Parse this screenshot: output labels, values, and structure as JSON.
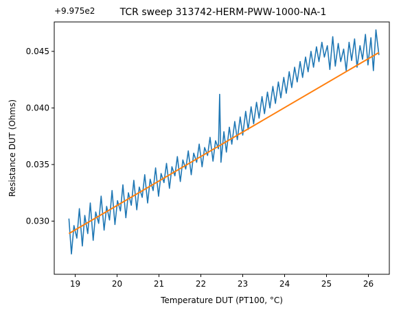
{
  "chart_data": {
    "type": "line",
    "title": "TCR sweep 313742-HERM-PWW-1000-NA-1",
    "xlabel": "Temperature DUT (PT100, °C)",
    "ylabel": "Resistance DUT (Ohms)",
    "y_offset_label": "+9.975e2",
    "xlim": [
      18.5,
      26.5
    ],
    "ylim": [
      0.0253,
      0.0476
    ],
    "x_ticks": [
      19,
      20,
      21,
      22,
      23,
      24,
      25,
      26
    ],
    "x_tick_labels": [
      "19",
      "20",
      "21",
      "22",
      "23",
      "24",
      "25",
      "26"
    ],
    "y_ticks": [
      0.03,
      0.035,
      0.04,
      0.045
    ],
    "y_tick_labels": [
      "0.030",
      "0.035",
      "0.040",
      "0.045"
    ],
    "grid": false,
    "colors": {
      "measured": "#1f77b4",
      "fit": "#ff7f0e"
    },
    "series": [
      {
        "role": "measured",
        "x": [
          18.85,
          18.91,
          18.97,
          19.04,
          19.1,
          19.17,
          19.23,
          19.3,
          19.36,
          19.43,
          19.49,
          19.56,
          19.62,
          19.69,
          19.75,
          19.82,
          19.88,
          19.95,
          20.01,
          20.08,
          20.14,
          20.21,
          20.27,
          20.34,
          20.4,
          20.47,
          20.53,
          20.6,
          20.66,
          20.73,
          20.79,
          20.86,
          20.92,
          20.99,
          21.05,
          21.12,
          21.18,
          21.25,
          21.31,
          21.38,
          21.44,
          21.51,
          21.57,
          21.64,
          21.7,
          21.77,
          21.83,
          21.9,
          21.96,
          22.03,
          22.09,
          22.16,
          22.22,
          22.29,
          22.35,
          22.42,
          22.45,
          22.48,
          22.55,
          22.61,
          22.68,
          22.74,
          22.81,
          22.87,
          22.94,
          23.0,
          23.07,
          23.13,
          23.2,
          23.26,
          23.33,
          23.39,
          23.46,
          23.52,
          23.59,
          23.65,
          23.72,
          23.78,
          23.85,
          23.91,
          23.98,
          24.04,
          24.11,
          24.17,
          24.24,
          24.3,
          24.37,
          24.43,
          24.5,
          24.56,
          24.63,
          24.69,
          24.76,
          24.82,
          24.89,
          24.95,
          25.02,
          25.08,
          25.15,
          25.21,
          25.28,
          25.34,
          25.41,
          25.47,
          25.54,
          25.6,
          25.67,
          25.73,
          25.8,
          25.86,
          25.93,
          25.99,
          26.06,
          26.12,
          26.18,
          26.25
        ],
        "y": [
          0.0302,
          0.0271,
          0.0296,
          0.0285,
          0.0311,
          0.0278,
          0.0305,
          0.0289,
          0.0316,
          0.0283,
          0.0308,
          0.0298,
          0.0322,
          0.0292,
          0.0313,
          0.0301,
          0.0327,
          0.0297,
          0.0318,
          0.0309,
          0.0332,
          0.0303,
          0.0325,
          0.0314,
          0.0336,
          0.031,
          0.033,
          0.0321,
          0.0341,
          0.0316,
          0.0337,
          0.0327,
          0.0347,
          0.0322,
          0.0342,
          0.0334,
          0.0351,
          0.0329,
          0.0348,
          0.034,
          0.0357,
          0.0335,
          0.0354,
          0.0346,
          0.0362,
          0.0341,
          0.036,
          0.0352,
          0.0368,
          0.0348,
          0.0365,
          0.0358,
          0.0374,
          0.0353,
          0.0371,
          0.0364,
          0.0412,
          0.0352,
          0.0379,
          0.0361,
          0.0383,
          0.0368,
          0.0388,
          0.0372,
          0.0392,
          0.0376,
          0.0397,
          0.0381,
          0.0401,
          0.0386,
          0.0405,
          0.0391,
          0.041,
          0.0395,
          0.0414,
          0.04,
          0.0419,
          0.0404,
          0.0423,
          0.0409,
          0.0427,
          0.0413,
          0.0432,
          0.0418,
          0.0436,
          0.0423,
          0.0441,
          0.0427,
          0.0445,
          0.0432,
          0.045,
          0.0436,
          0.0454,
          0.0441,
          0.0458,
          0.0445,
          0.0455,
          0.0434,
          0.0463,
          0.0437,
          0.0457,
          0.0441,
          0.0452,
          0.0433,
          0.0458,
          0.0442,
          0.0461,
          0.0436,
          0.0455,
          0.0443,
          0.0465,
          0.0438,
          0.0462,
          0.0433,
          0.0469,
          0.0447
        ]
      },
      {
        "role": "fit",
        "x": [
          18.85,
          26.25
        ],
        "y": [
          0.0289,
          0.0449
        ]
      }
    ]
  }
}
